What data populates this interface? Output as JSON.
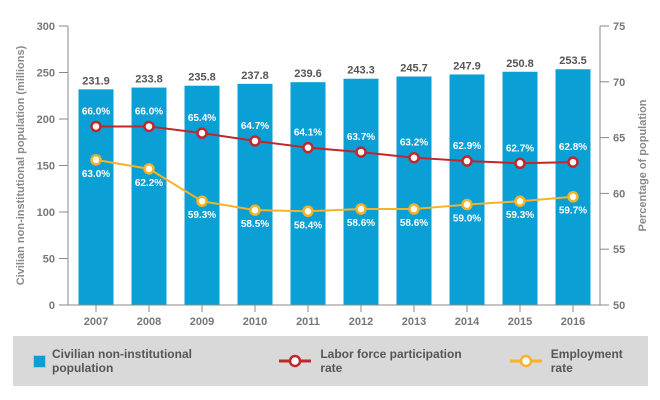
{
  "chart_data": {
    "type": "bar",
    "categories": [
      "2007",
      "2008",
      "2009",
      "2010",
      "2011",
      "2012",
      "2013",
      "2014",
      "2015",
      "2016"
    ],
    "series": [
      {
        "name": "Civilian non-institutional population",
        "type": "bar",
        "axis": "left",
        "color": "#0aa0d6",
        "values": [
          231.9,
          233.8,
          235.8,
          237.8,
          239.6,
          243.3,
          245.7,
          247.9,
          250.8,
          253.5
        ],
        "labels": [
          "231.9",
          "233.8",
          "235.8",
          "237.8",
          "239.6",
          "243.3",
          "245.7",
          "247.9",
          "250.8",
          "253.5"
        ]
      },
      {
        "name": "Labor force participation rate",
        "type": "line",
        "axis": "right",
        "color": "#c0272d",
        "values": [
          66.0,
          66.0,
          65.4,
          64.7,
          64.1,
          63.7,
          63.2,
          62.9,
          62.7,
          62.8
        ],
        "labels": [
          "66.0%",
          "66.0%",
          "65.4%",
          "64.7%",
          "64.1%",
          "63.7%",
          "63.2%",
          "62.9%",
          "62.7%",
          "62.8%"
        ]
      },
      {
        "name": "Employment rate",
        "type": "line",
        "axis": "right",
        "color": "#f5b325",
        "values": [
          63.0,
          62.2,
          59.3,
          58.5,
          58.4,
          58.6,
          58.6,
          59.0,
          59.3,
          59.7
        ],
        "labels": [
          "63.0%",
          "62.2%",
          "59.3%",
          "58.5%",
          "58.4%",
          "58.6%",
          "58.6%",
          "59.0%",
          "59.3%",
          "59.7%"
        ]
      }
    ],
    "y_left": {
      "label": "Civilian non-institutional population (millions)",
      "lim": [
        0,
        300
      ],
      "ticks": [
        "0",
        "50",
        "100",
        "150",
        "200",
        "250",
        "300"
      ]
    },
    "y_right": {
      "label": "Percentage of population",
      "lim": [
        50,
        75
      ],
      "ticks": [
        "50",
        "55",
        "60",
        "65",
        "70",
        "75"
      ]
    },
    "grid": false,
    "legend_position": "bottom"
  }
}
